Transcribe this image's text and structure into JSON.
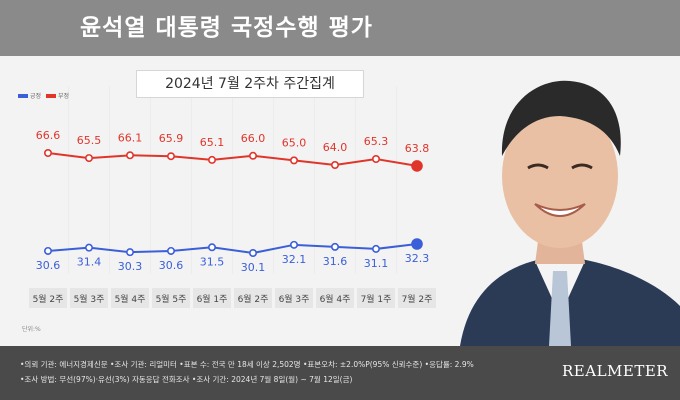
{
  "title": "윤석열 대통령 국정수행 평가",
  "subtitle": "2024년 7월 2주차 주간집계",
  "legend": [
    {
      "label": "긍정",
      "color": "#3a5fd9"
    },
    {
      "label": "부정",
      "color": "#e0352b"
    }
  ],
  "unit_label": "단위:%",
  "chart_data": {
    "type": "line",
    "categories": [
      "5월 2주",
      "5월 3주",
      "5월 4주",
      "5월 5주",
      "6월 1주",
      "6월 2주",
      "6월 3주",
      "6월 4주",
      "7월 1주",
      "7월 2주"
    ],
    "series": [
      {
        "name": "부정",
        "color": "#e0352b",
        "values": [
          66.6,
          65.5,
          66.1,
          65.9,
          65.1,
          66.0,
          65.0,
          64.0,
          65.3,
          63.8
        ]
      },
      {
        "name": "긍정",
        "color": "#3a5fd9",
        "values": [
          30.6,
          31.4,
          30.3,
          30.6,
          31.5,
          30.1,
          32.1,
          31.6,
          31.1,
          32.3
        ]
      }
    ],
    "grid": false
  },
  "footer": {
    "line1": "•의뢰 기관: 에너지경제신문 •조사 기관: 리얼미터 •표본 수: 전국 만 18세 이상 2,502명 •표본오차: ±2.0%P(95% 신뢰수준) •응답률: 2.9%",
    "line2": "•조사 방법: 무선(97%)·유선(3%) 자동응답 전화조사 •조사 기간: 2024년 7월 8일(월) ~ 7월 12일(금)"
  },
  "brand": "REALMETER"
}
